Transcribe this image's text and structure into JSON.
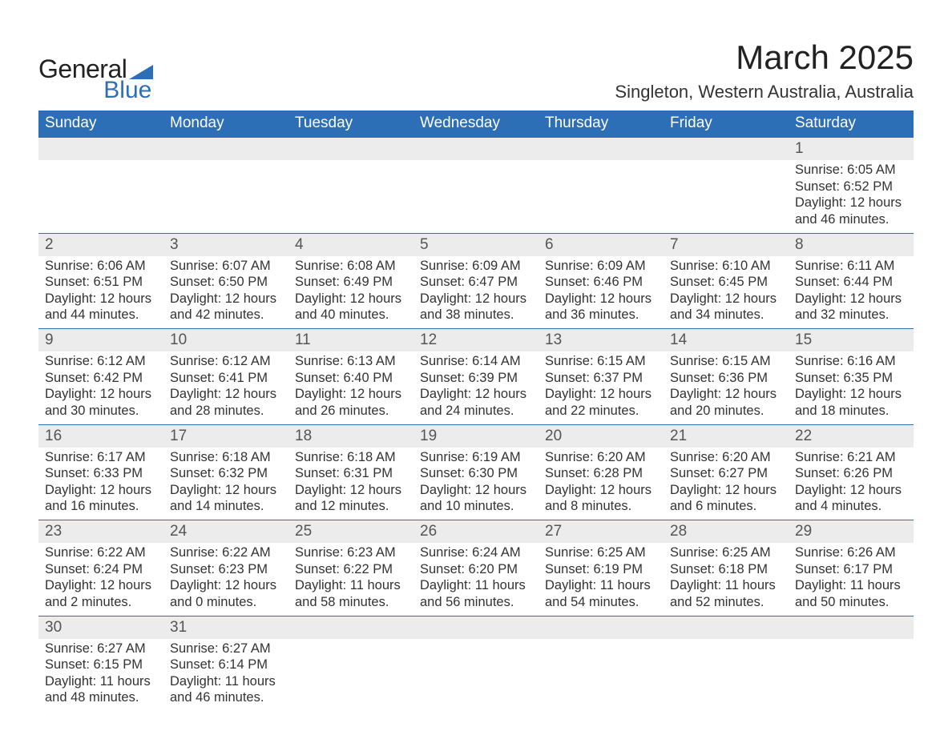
{
  "logo": {
    "word1": "General",
    "word2": "Blue",
    "tri_color": "#2d6fb6"
  },
  "title": "March 2025",
  "location": "Singleton, Western Australia, Australia",
  "colors": {
    "header_bg": "#2d6fb6",
    "header_text": "#ffffff",
    "daynum_bg": "#ececec",
    "row_border": "#2d6fb6",
    "body_text": "#333333"
  },
  "fonts": {
    "title_size_pt": 32,
    "location_size_pt": 17,
    "header_size_pt": 15,
    "daynum_size_pt": 15,
    "detail_size_pt": 13
  },
  "days_of_week": [
    "Sunday",
    "Monday",
    "Tuesday",
    "Wednesday",
    "Thursday",
    "Friday",
    "Saturday"
  ],
  "weeks": [
    [
      null,
      null,
      null,
      null,
      null,
      null,
      {
        "n": "1",
        "sunrise": "6:05 AM",
        "sunset": "6:52 PM",
        "daylight": "12 hours and 46 minutes."
      }
    ],
    [
      {
        "n": "2",
        "sunrise": "6:06 AM",
        "sunset": "6:51 PM",
        "daylight": "12 hours and 44 minutes."
      },
      {
        "n": "3",
        "sunrise": "6:07 AM",
        "sunset": "6:50 PM",
        "daylight": "12 hours and 42 minutes."
      },
      {
        "n": "4",
        "sunrise": "6:08 AM",
        "sunset": "6:49 PM",
        "daylight": "12 hours and 40 minutes."
      },
      {
        "n": "5",
        "sunrise": "6:09 AM",
        "sunset": "6:47 PM",
        "daylight": "12 hours and 38 minutes."
      },
      {
        "n": "6",
        "sunrise": "6:09 AM",
        "sunset": "6:46 PM",
        "daylight": "12 hours and 36 minutes."
      },
      {
        "n": "7",
        "sunrise": "6:10 AM",
        "sunset": "6:45 PM",
        "daylight": "12 hours and 34 minutes."
      },
      {
        "n": "8",
        "sunrise": "6:11 AM",
        "sunset": "6:44 PM",
        "daylight": "12 hours and 32 minutes."
      }
    ],
    [
      {
        "n": "9",
        "sunrise": "6:12 AM",
        "sunset": "6:42 PM",
        "daylight": "12 hours and 30 minutes."
      },
      {
        "n": "10",
        "sunrise": "6:12 AM",
        "sunset": "6:41 PM",
        "daylight": "12 hours and 28 minutes."
      },
      {
        "n": "11",
        "sunrise": "6:13 AM",
        "sunset": "6:40 PM",
        "daylight": "12 hours and 26 minutes."
      },
      {
        "n": "12",
        "sunrise": "6:14 AM",
        "sunset": "6:39 PM",
        "daylight": "12 hours and 24 minutes."
      },
      {
        "n": "13",
        "sunrise": "6:15 AM",
        "sunset": "6:37 PM",
        "daylight": "12 hours and 22 minutes."
      },
      {
        "n": "14",
        "sunrise": "6:15 AM",
        "sunset": "6:36 PM",
        "daylight": "12 hours and 20 minutes."
      },
      {
        "n": "15",
        "sunrise": "6:16 AM",
        "sunset": "6:35 PM",
        "daylight": "12 hours and 18 minutes."
      }
    ],
    [
      {
        "n": "16",
        "sunrise": "6:17 AM",
        "sunset": "6:33 PM",
        "daylight": "12 hours and 16 minutes."
      },
      {
        "n": "17",
        "sunrise": "6:18 AM",
        "sunset": "6:32 PM",
        "daylight": "12 hours and 14 minutes."
      },
      {
        "n": "18",
        "sunrise": "6:18 AM",
        "sunset": "6:31 PM",
        "daylight": "12 hours and 12 minutes."
      },
      {
        "n": "19",
        "sunrise": "6:19 AM",
        "sunset": "6:30 PM",
        "daylight": "12 hours and 10 minutes."
      },
      {
        "n": "20",
        "sunrise": "6:20 AM",
        "sunset": "6:28 PM",
        "daylight": "12 hours and 8 minutes."
      },
      {
        "n": "21",
        "sunrise": "6:20 AM",
        "sunset": "6:27 PM",
        "daylight": "12 hours and 6 minutes."
      },
      {
        "n": "22",
        "sunrise": "6:21 AM",
        "sunset": "6:26 PM",
        "daylight": "12 hours and 4 minutes."
      }
    ],
    [
      {
        "n": "23",
        "sunrise": "6:22 AM",
        "sunset": "6:24 PM",
        "daylight": "12 hours and 2 minutes."
      },
      {
        "n": "24",
        "sunrise": "6:22 AM",
        "sunset": "6:23 PM",
        "daylight": "12 hours and 0 minutes."
      },
      {
        "n": "25",
        "sunrise": "6:23 AM",
        "sunset": "6:22 PM",
        "daylight": "11 hours and 58 minutes."
      },
      {
        "n": "26",
        "sunrise": "6:24 AM",
        "sunset": "6:20 PM",
        "daylight": "11 hours and 56 minutes."
      },
      {
        "n": "27",
        "sunrise": "6:25 AM",
        "sunset": "6:19 PM",
        "daylight": "11 hours and 54 minutes."
      },
      {
        "n": "28",
        "sunrise": "6:25 AM",
        "sunset": "6:18 PM",
        "daylight": "11 hours and 52 minutes."
      },
      {
        "n": "29",
        "sunrise": "6:26 AM",
        "sunset": "6:17 PM",
        "daylight": "11 hours and 50 minutes."
      }
    ],
    [
      {
        "n": "30",
        "sunrise": "6:27 AM",
        "sunset": "6:15 PM",
        "daylight": "11 hours and 48 minutes."
      },
      {
        "n": "31",
        "sunrise": "6:27 AM",
        "sunset": "6:14 PM",
        "daylight": "11 hours and 46 minutes."
      },
      null,
      null,
      null,
      null,
      null
    ]
  ],
  "labels": {
    "sunrise": "Sunrise:",
    "sunset": "Sunset:",
    "daylight": "Daylight:"
  }
}
